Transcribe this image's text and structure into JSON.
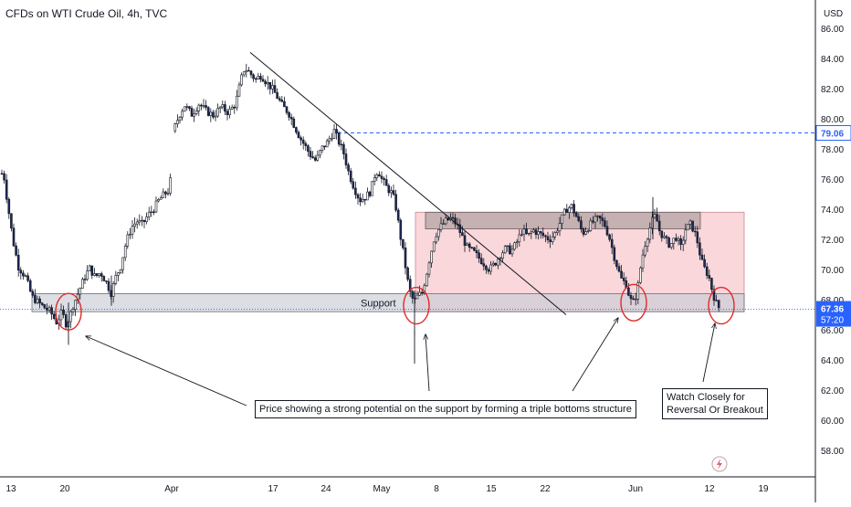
{
  "header": {
    "title": "CFDs on WTI Crude Oil, 4h, TVC"
  },
  "colors": {
    "candle": "#131722",
    "candle_up_fill": "#ffffff",
    "candle_down_fill": "#1e2a5a",
    "support_zone": "#c9ccd6",
    "range_zone": "#f7c9cd",
    "resistance_zone": "#b8a6a8",
    "trendline": "#131722",
    "circle": "#e02b2b",
    "level_line": "#2962ff",
    "label_blue": "#2962ff",
    "grid_axis": "#131722"
  },
  "chart_data": {
    "type": "candlestick",
    "title": "CFDs on WTI Crude Oil, 4h, TVC",
    "symbol": "CFDs on WTI Crude Oil",
    "interval": "4h",
    "source": "TVC",
    "currency": "USD",
    "ylim": [
      57,
      87
    ],
    "y_ticks": [
      "86.00",
      "84.00",
      "82.00",
      "80.00",
      "78.00",
      "76.00",
      "74.00",
      "72.00",
      "70.00",
      "68.00",
      "66.00",
      "64.00",
      "62.00",
      "60.00",
      "58.00"
    ],
    "x_ticks": [
      "13",
      "20",
      "Apr",
      "17",
      "24",
      "May",
      "8",
      "15",
      "22",
      "Jun",
      "12",
      "19"
    ],
    "price_path": [
      [
        0,
        75.5
      ],
      [
        3,
        76.8
      ],
      [
        8,
        74.5
      ],
      [
        14,
        72.0
      ],
      [
        20,
        70.2
      ],
      [
        28,
        69.5
      ],
      [
        35,
        68.2
      ],
      [
        42,
        67.8
      ],
      [
        48,
        67.5
      ],
      [
        55,
        67.2
      ],
      [
        62,
        66.5
      ],
      [
        68,
        67.2
      ],
      [
        72,
        66.4
      ],
      [
        76,
        66.8
      ],
      [
        80,
        67.6
      ],
      [
        86,
        68.5
      ],
      [
        92,
        69.4
      ],
      [
        98,
        70.1
      ],
      [
        104,
        69.5
      ],
      [
        110,
        69.8
      ],
      [
        116,
        69.2
      ],
      [
        122,
        68.4
      ],
      [
        126,
        69.4
      ],
      [
        132,
        70.2
      ],
      [
        138,
        71.8
      ],
      [
        144,
        72.8
      ],
      [
        150,
        73.2
      ],
      [
        156,
        73.0
      ],
      [
        162,
        73.6
      ],
      [
        168,
        74.0
      ],
      [
        174,
        74.6
      ],
      [
        180,
        75.0
      ],
      [
        186,
        75.3
      ],
      [
        190,
        79.2
      ],
      [
        196,
        80.2
      ],
      [
        202,
        80.9
      ],
      [
        210,
        80.3
      ],
      [
        218,
        81.0
      ],
      [
        226,
        80.5
      ],
      [
        234,
        80.2
      ],
      [
        242,
        80.8
      ],
      [
        250,
        80.4
      ],
      [
        258,
        81.0
      ],
      [
        264,
        82.6
      ],
      [
        268,
        83.4
      ],
      [
        274,
        83.0
      ],
      [
        280,
        82.6
      ],
      [
        286,
        82.9
      ],
      [
        292,
        82.4
      ],
      [
        298,
        82.0
      ],
      [
        304,
        81.4
      ],
      [
        310,
        80.8
      ],
      [
        316,
        80.4
      ],
      [
        322,
        79.6
      ],
      [
        328,
        78.8
      ],
      [
        334,
        78.2
      ],
      [
        340,
        77.6
      ],
      [
        346,
        77.2
      ],
      [
        352,
        78.0
      ],
      [
        358,
        78.4
      ],
      [
        362,
        78.8
      ],
      [
        366,
        79.2
      ],
      [
        370,
        78.6
      ],
      [
        376,
        77.8
      ],
      [
        382,
        76.4
      ],
      [
        388,
        75.4
      ],
      [
        394,
        74.6
      ],
      [
        400,
        74.8
      ],
      [
        406,
        75.2
      ],
      [
        410,
        76.2
      ],
      [
        414,
        76.6
      ],
      [
        418,
        76.0
      ],
      [
        424,
        75.4
      ],
      [
        430,
        75.0
      ],
      [
        434,
        74.0
      ],
      [
        438,
        72.4
      ],
      [
        442,
        71.0
      ],
      [
        446,
        69.4
      ],
      [
        450,
        68.2
      ],
      [
        454,
        67.9
      ],
      [
        458,
        68.3
      ],
      [
        462,
        68.4
      ],
      [
        466,
        69.4
      ],
      [
        470,
        70.6
      ],
      [
        476,
        72.2
      ],
      [
        482,
        72.8
      ],
      [
        488,
        73.2
      ],
      [
        494,
        73.4
      ],
      [
        500,
        73.0
      ],
      [
        506,
        72.2
      ],
      [
        512,
        71.4
      ],
      [
        518,
        71.2
      ],
      [
        524,
        70.8
      ],
      [
        530,
        70.4
      ],
      [
        536,
        70.0
      ],
      [
        542,
        70.4
      ],
      [
        548,
        71.0
      ],
      [
        554,
        71.4
      ],
      [
        560,
        71.2
      ],
      [
        566,
        71.8
      ],
      [
        572,
        72.6
      ],
      [
        578,
        72.2
      ],
      [
        584,
        72.6
      ],
      [
        590,
        72.4
      ],
      [
        596,
        72.2
      ],
      [
        602,
        72.0
      ],
      [
        608,
        72.4
      ],
      [
        614,
        73.2
      ],
      [
        620,
        74.0
      ],
      [
        626,
        74.2
      ],
      [
        632,
        73.4
      ],
      [
        638,
        72.4
      ],
      [
        644,
        72.8
      ],
      [
        650,
        73.2
      ],
      [
        656,
        73.4
      ],
      [
        662,
        73.0
      ],
      [
        668,
        72.0
      ],
      [
        672,
        71.0
      ],
      [
        676,
        70.2
      ],
      [
        680,
        69.4
      ],
      [
        686,
        69.0
      ],
      [
        690,
        68.0
      ],
      [
        694,
        67.8
      ],
      [
        698,
        68.6
      ],
      [
        702,
        70.4
      ],
      [
        706,
        71.6
      ],
      [
        710,
        72.4
      ],
      [
        714,
        73.2
      ],
      [
        718,
        73.6
      ],
      [
        722,
        72.6
      ],
      [
        728,
        72.0
      ],
      [
        734,
        71.6
      ],
      [
        740,
        72.2
      ],
      [
        746,
        71.4
      ],
      [
        750,
        72.6
      ],
      [
        756,
        73.0
      ],
      [
        760,
        72.6
      ],
      [
        764,
        71.8
      ],
      [
        768,
        70.6
      ],
      [
        772,
        70.0
      ],
      [
        776,
        69.6
      ],
      [
        780,
        68.6
      ],
      [
        784,
        67.8
      ],
      [
        788,
        67.4
      ]
    ],
    "annotations": {
      "support_label": "Support",
      "note_main": "Price showing a strong potential on the support by forming a triple bottoms structure",
      "note_side_line1": "Watch Closely for",
      "note_side_line2": "Reversal Or Breakout"
    },
    "levels": {
      "dashed_level": 79.06,
      "last_price": 67.36
    },
    "zones": {
      "support": [
        67.2,
        68.4
      ],
      "range": [
        67.2,
        73.8
      ],
      "resistance": [
        72.7,
        73.8
      ]
    }
  },
  "price_axis": {
    "unit_label": "USD",
    "labels": [
      "86.00",
      "84.00",
      "82.00",
      "80.00",
      "78.00",
      "76.00",
      "74.00",
      "72.00",
      "70.00",
      "68.00",
      "66.00",
      "64.00",
      "62.00",
      "60.00",
      "58.00"
    ],
    "level_badge": "79.06",
    "price_badge": "67.36",
    "countdown_badge": "57:20"
  },
  "time_axis": {
    "labels": [
      "13",
      "20",
      "Apr",
      "17",
      "24",
      "May",
      "8",
      "15",
      "22",
      "Jun",
      "12",
      "19"
    ]
  },
  "icons": {
    "flash": "lightning-icon"
  }
}
